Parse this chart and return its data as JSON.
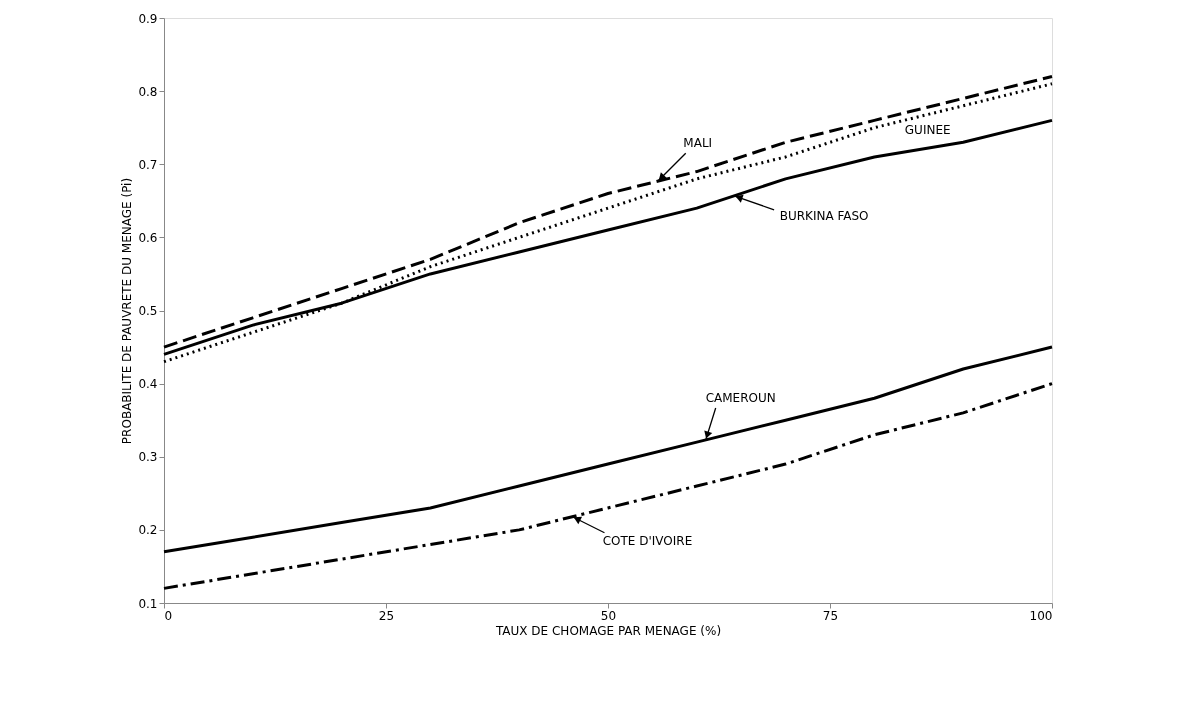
{
  "chart_data": {
    "type": "line",
    "xlabel": "TAUX DE CHOMAGE PAR MENAGE (%)",
    "ylabel": "PROBABILITE DE PAUVRETE DU MENAGE (Pi)",
    "x": [
      0,
      10,
      20,
      30,
      40,
      50,
      60,
      70,
      80,
      90,
      100
    ],
    "series": [
      {
        "name": "MALI",
        "color": "#000000",
        "line_style": "dashed",
        "values": [
          0.45,
          0.49,
          0.53,
          0.57,
          0.62,
          0.66,
          0.69,
          0.73,
          0.76,
          0.79,
          0.82
        ]
      },
      {
        "name": "GUINEE",
        "color": "#000000",
        "line_style": "dotted",
        "values": [
          0.43,
          0.47,
          0.51,
          0.56,
          0.6,
          0.64,
          0.68,
          0.71,
          0.75,
          0.78,
          0.81
        ]
      },
      {
        "name": "BURKINA FASO",
        "color": "#000000",
        "line_style": "solid",
        "values": [
          0.44,
          0.48,
          0.51,
          0.55,
          0.58,
          0.61,
          0.64,
          0.68,
          0.71,
          0.73,
          0.76
        ]
      },
      {
        "name": "CAMEROUN",
        "color": "#000000",
        "line_style": "solid",
        "values": [
          0.17,
          0.19,
          0.21,
          0.23,
          0.26,
          0.29,
          0.32,
          0.35,
          0.38,
          0.42,
          0.45
        ]
      },
      {
        "name": "COTE D'IVOIRE",
        "color": "#000000",
        "line_style": "dashdot",
        "values": [
          0.12,
          0.14,
          0.16,
          0.18,
          0.2,
          0.23,
          0.26,
          0.29,
          0.33,
          0.36,
          0.4
        ]
      }
    ],
    "xlim": [
      0,
      100
    ],
    "xticks": [
      0,
      25,
      50,
      75,
      100
    ],
    "ylim": [
      0.1,
      0.9
    ],
    "yticks": [
      0.1,
      0.2,
      0.3,
      0.4,
      0.5,
      0.6,
      0.7,
      0.8,
      0.9
    ],
    "grid": false,
    "marker": "none"
  }
}
